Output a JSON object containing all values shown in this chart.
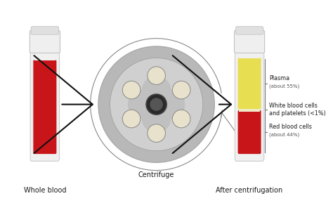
{
  "background_color": "#ffffff",
  "label_fontsize": 7.0,
  "annotation_fontsize": 5.8,
  "annotation_sub_fontsize": 5.0,
  "tube1_label": "Whole blood",
  "centrifuge_label": "Centrifuge",
  "tube2_label": "After centrifugation",
  "plasma_label": "Plasma",
  "plasma_sub": "(about 55%)",
  "wbc_label": "White blood cells\nand platelets (<1%)",
  "rbc_label": "Red blood cells",
  "rbc_sub": "(about 44%)",
  "blood_red": "#c8151a",
  "plasma_yellow": "#e8de52",
  "wbc_cream": "#f0eccc",
  "centrifuge_outer_ring": "#aaaaaa",
  "centrifuge_outer_fill": "#b8b8b8",
  "centrifuge_inner_fill": "#d0d0d0",
  "centrifuge_cross_fill": "#c0c0c0",
  "centrifuge_hub_dark": "#2a2a2a",
  "centrifuge_hub_ring": "#444444",
  "centrifuge_slot_fill": "#e8e2cc",
  "centrifuge_slot_edge": "#888888",
  "arrow_color": "#111111",
  "curved_arrow_color": "#888888",
  "tube_glass": "#f0f0f0",
  "tube_glass_edge": "#cccccc",
  "tube_cap_white": "#efefef",
  "tube_cap_edge": "#bbbbbb",
  "bracket_color": "#777777"
}
